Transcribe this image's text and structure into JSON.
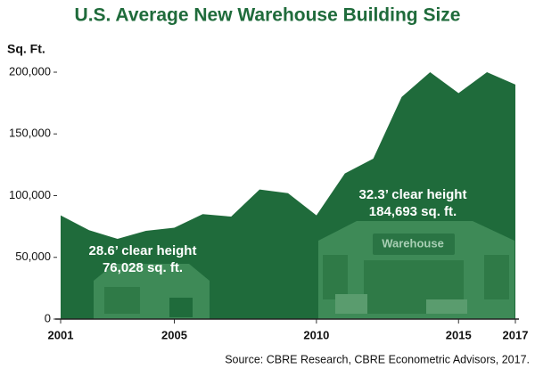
{
  "chart_data": {
    "type": "area",
    "title": "U.S. Average New Warehouse Building Size",
    "y_label": "Sq. Ft.",
    "x": [
      2001,
      2002,
      2003,
      2004,
      2005,
      2006,
      2007,
      2008,
      2009,
      2010,
      2011,
      2012,
      2013,
      2014,
      2015,
      2016,
      2017
    ],
    "values": [
      84000,
      72000,
      65000,
      71500,
      74000,
      85000,
      83000,
      105000,
      102000,
      84000,
      118000,
      130000,
      180000,
      200000,
      183000,
      200000,
      190000
    ],
    "color": "#1f6b3b",
    "xlim": [
      2001,
      2017
    ],
    "xticks": [
      2001,
      2005,
      2010,
      2015,
      2017
    ],
    "ylim": [
      0,
      200000
    ],
    "yticks": [
      0,
      {
        "value": 50000,
        "label": "50,000"
      },
      {
        "value": 100000,
        "label": "100,000"
      },
      {
        "value": 150000,
        "label": "150,000"
      },
      {
        "value": 200000,
        "label": "200,000"
      }
    ],
    "annotations": [
      {
        "lines": [
          "28.6’ clear height",
          "76,028 sq. ft."
        ]
      },
      {
        "lines": [
          "32.3’ clear height",
          "184,693 sq. ft."
        ]
      }
    ],
    "sign": "Warehouse",
    "source": "Source: CBRE Research, CBRE Econometric Advisors, 2017."
  }
}
